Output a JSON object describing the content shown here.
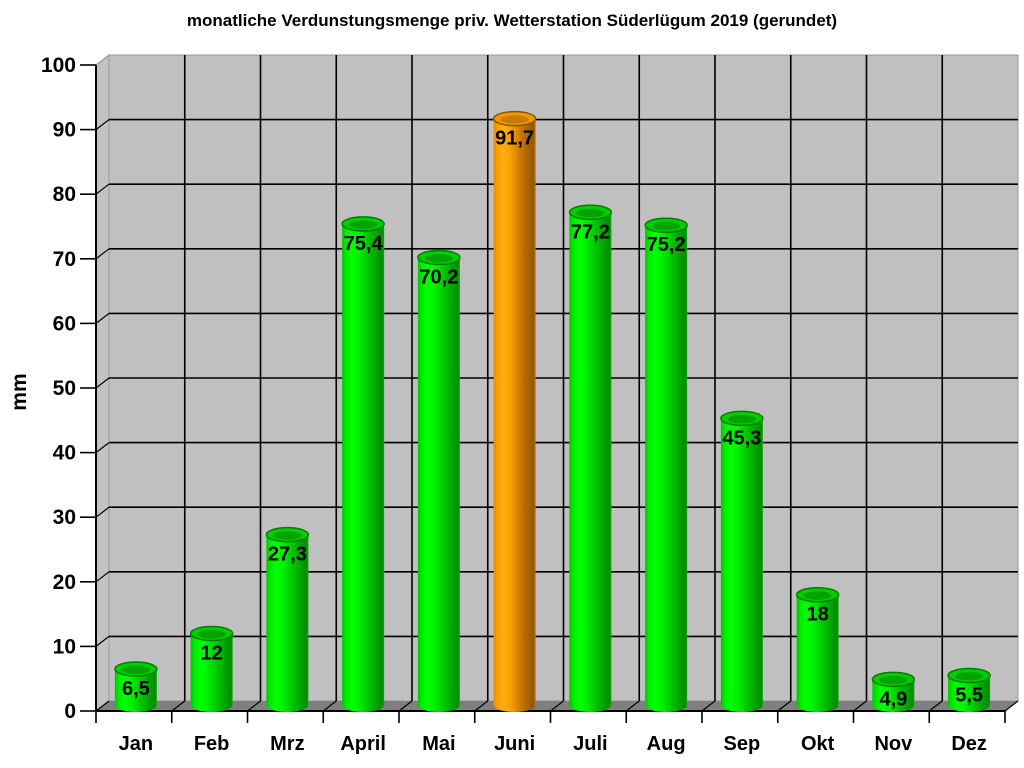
{
  "chart_data": {
    "type": "bar",
    "style": "3d-cylinder",
    "title": "monatliche Verdunstungsmenge priv. Wetterstation Süderlügum 2019 (gerundet)",
    "xlabel": "",
    "ylabel": "mm",
    "categories": [
      "Jan",
      "Feb",
      "Mrz",
      "April",
      "Mai",
      "Juni",
      "Juli",
      "Aug",
      "Sep",
      "Okt",
      "Nov",
      "Dez"
    ],
    "values": [
      6.5,
      12,
      27.3,
      75.4,
      70.2,
      91.7,
      77.2,
      75.2,
      45.3,
      18,
      4.9,
      5.5
    ],
    "value_labels": [
      "6,5",
      "12",
      "27,3",
      "75,4",
      "70,2",
      "91,7",
      "77,2",
      "75,2",
      "45,3",
      "18",
      "4,9",
      "5,5"
    ],
    "ylim": [
      0,
      100
    ],
    "ytick_step": 10,
    "grid": true,
    "legend": false,
    "highlight_index": 5,
    "colors": {
      "bar": "#00dc00",
      "bar_highlight": "#f59e00",
      "plot_background": "#c0c0c0",
      "floor": "#7f7f7f",
      "gridline": "#000000",
      "text": "#000000",
      "page_background": "#ffffff"
    }
  }
}
